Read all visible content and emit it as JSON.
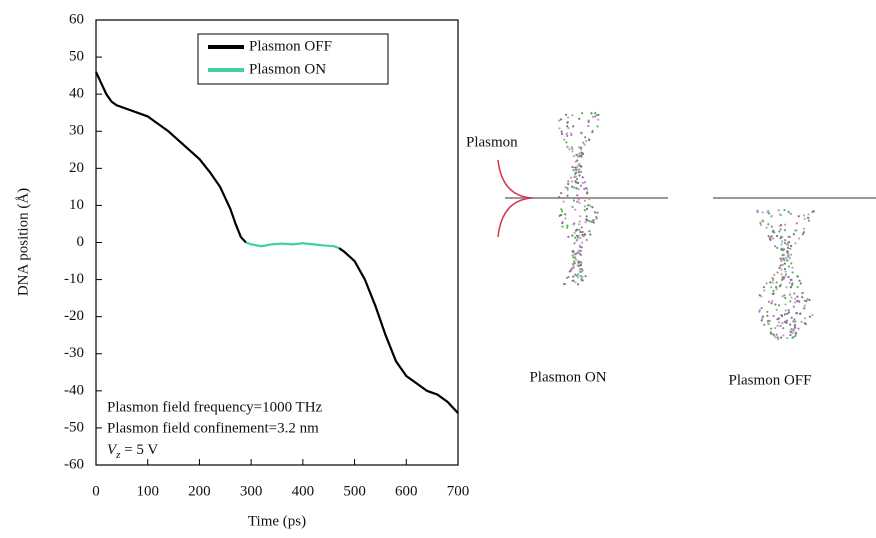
{
  "chart_data": {
    "type": "line",
    "xlabel": "Time (ps)",
    "ylabel": "DNA position (Å)",
    "xlim": [
      0,
      700
    ],
    "xticks": [
      0,
      100,
      200,
      300,
      400,
      500,
      600,
      700
    ],
    "ylim": [
      -60,
      60
    ],
    "yticks": [
      -60,
      -50,
      -40,
      -30,
      -20,
      -10,
      0,
      10,
      20,
      30,
      40,
      50,
      60
    ],
    "legend": "upper center",
    "series": [
      {
        "name": "Plasmon OFF",
        "color": "#000000",
        "x": [
          0,
          10,
          20,
          30,
          40,
          50,
          60,
          80,
          100,
          120,
          140,
          160,
          180,
          200,
          220,
          240,
          260,
          270,
          280,
          290,
          380,
          470,
          480,
          500,
          520,
          540,
          560,
          580,
          600,
          620,
          640,
          660,
          680,
          700
        ],
        "values": [
          46,
          43,
          40,
          38,
          37,
          36.5,
          36,
          35,
          34,
          32,
          30,
          27.5,
          25,
          22.5,
          19,
          15,
          9,
          5,
          1.5,
          0,
          null,
          -1.5,
          -2.5,
          -5,
          -10,
          -17,
          -25,
          -32,
          -36,
          -38,
          -40,
          -41,
          -43,
          -46
        ]
      },
      {
        "name": "Plasmon ON",
        "color": "#3fd1a3",
        "x": [
          290,
          300,
          320,
          340,
          360,
          380,
          400,
          420,
          440,
          460,
          470
        ],
        "values": [
          0,
          -0.5,
          -1,
          -0.5,
          -0.3,
          -0.5,
          -0.2,
          -0.5,
          -0.8,
          -1,
          -1.5
        ]
      }
    ],
    "annotations": [
      "Plasmon field frequency=1000 THz",
      "Plasmon field confinement=3.2 nm"
    ],
    "voltage_label": {
      "base": "V",
      "sub": "z",
      "rest": " = 5 V"
    }
  },
  "illustration": {
    "plasmon_label": "Plasmon",
    "on_label": "Plasmon ON",
    "off_label": "Plasmon OFF"
  }
}
